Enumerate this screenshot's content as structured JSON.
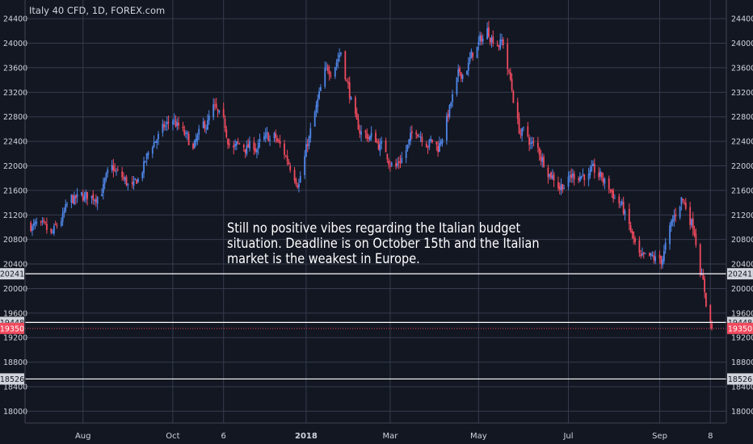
{
  "colors": {
    "background": "#131722",
    "grid": "#363c4e",
    "up": "#4f86e8",
    "down": "#f04a5e",
    "text": "#d1d4dc",
    "level_line": "#ffffff",
    "current_price": "#f04a5e"
  },
  "chart_data": {
    "type": "candlestick",
    "title": "Italy 40 CFD, 1D, FOREX.com",
    "annotation": [
      "Still no positive vibes regarding the Italian budget",
      "situation. Deadline is on October 15th and the Italian",
      "market is the weakest in Europe."
    ],
    "ylim": [
      17900,
      24560
    ],
    "y_ticks": [
      18000,
      18400,
      18800,
      19200,
      19600,
      20000,
      20400,
      20800,
      21200,
      21600,
      22000,
      22400,
      22800,
      23200,
      23600,
      24000,
      24400
    ],
    "x_ticks": [
      {
        "label": "Aug",
        "date": "2017-08-01",
        "bold": false
      },
      {
        "label": "Oct",
        "date": "2017-10-02",
        "bold": false
      },
      {
        "label": "6",
        "date": "2017-11-06",
        "bold": false
      },
      {
        "label": "2018",
        "date": "2018-01-02",
        "bold": true
      },
      {
        "label": "Mar",
        "date": "2018-03-01",
        "bold": false
      },
      {
        "label": "May",
        "date": "2018-05-01",
        "bold": false
      },
      {
        "label": "Jul",
        "date": "2018-07-02",
        "bold": false
      },
      {
        "label": "Sep",
        "date": "2018-09-03",
        "bold": false
      },
      {
        "label": "8",
        "date": "2018-10-08",
        "bold": false
      }
    ],
    "x_range": [
      "2017-06-22",
      "2018-10-19"
    ],
    "horizontal_levels": [
      20241,
      19448,
      18526
    ],
    "current_price": 19350,
    "candles_start": "2017-06-26",
    "candles_end": "2018-10-09",
    "price_path": [
      {
        "date": "2017-06-26",
        "price": 21050
      },
      {
        "date": "2017-07-10",
        "price": 20800
      },
      {
        "date": "2017-07-24",
        "price": 21400
      },
      {
        "date": "2017-08-08",
        "price": 21500
      },
      {
        "date": "2017-08-22",
        "price": 21900
      },
      {
        "date": "2017-09-05",
        "price": 21600
      },
      {
        "date": "2017-09-19",
        "price": 22400
      },
      {
        "date": "2017-10-02",
        "price": 22750
      },
      {
        "date": "2017-10-16",
        "price": 22250
      },
      {
        "date": "2017-10-30",
        "price": 22900
      },
      {
        "date": "2017-11-13",
        "price": 22300
      },
      {
        "date": "2017-11-27",
        "price": 22300
      },
      {
        "date": "2017-12-11",
        "price": 22450
      },
      {
        "date": "2017-12-28",
        "price": 21800
      },
      {
        "date": "2018-01-15",
        "price": 23450
      },
      {
        "date": "2018-01-26",
        "price": 23900
      },
      {
        "date": "2018-02-06",
        "price": 22600
      },
      {
        "date": "2018-02-20",
        "price": 22400
      },
      {
        "date": "2018-03-05",
        "price": 22000
      },
      {
        "date": "2018-03-20",
        "price": 22600
      },
      {
        "date": "2018-04-03",
        "price": 22300
      },
      {
        "date": "2018-04-17",
        "price": 23400
      },
      {
        "date": "2018-05-07",
        "price": 24200
      },
      {
        "date": "2018-05-18",
        "price": 24000
      },
      {
        "date": "2018-05-29",
        "price": 22600
      },
      {
        "date": "2018-06-12",
        "price": 22200
      },
      {
        "date": "2018-06-26",
        "price": 21700
      },
      {
        "date": "2018-07-10",
        "price": 21900
      },
      {
        "date": "2018-07-24",
        "price": 21800
      },
      {
        "date": "2018-08-07",
        "price": 21400
      },
      {
        "date": "2018-08-21",
        "price": 20400
      },
      {
        "date": "2018-09-04",
        "price": 20450
      },
      {
        "date": "2018-09-18",
        "price": 21500
      },
      {
        "date": "2018-09-27",
        "price": 21000
      },
      {
        "date": "2018-10-01",
        "price": 20400
      },
      {
        "date": "2018-10-05",
        "price": 19800
      },
      {
        "date": "2018-10-09",
        "price": 19350
      }
    ]
  }
}
